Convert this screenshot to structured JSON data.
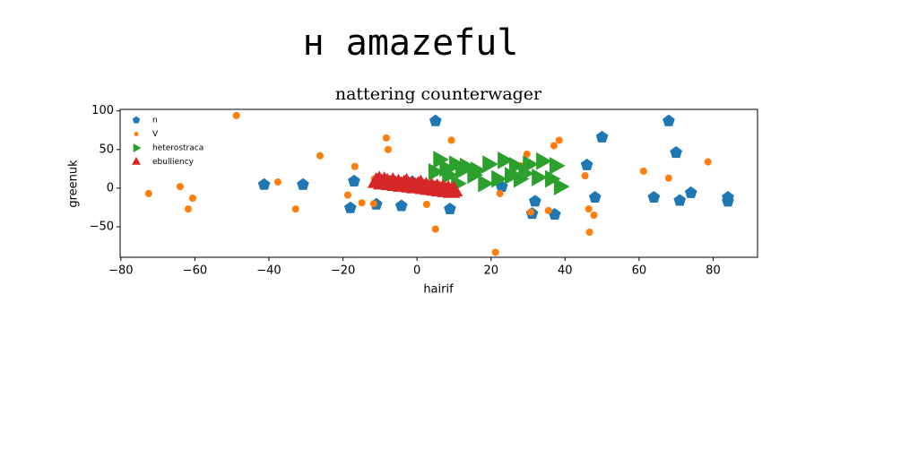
{
  "page_title": "н amazeful",
  "chart_data": {
    "type": "scatter",
    "title": "nattering counterwager",
    "xlabel": "hairif",
    "ylabel": "greenuk",
    "xlim": [
      -80.2,
      92
    ],
    "ylim": [
      -89.5,
      102
    ],
    "xticks": [
      {
        "value": -80,
        "label": "−80"
      },
      {
        "value": -60,
        "label": "−60"
      },
      {
        "value": -40,
        "label": "−40"
      },
      {
        "value": -20,
        "label": "−20"
      },
      0,
      20,
      40,
      60,
      80
    ],
    "yticks": [
      {
        "value": -50,
        "label": "−50"
      },
      0,
      50,
      100
    ],
    "legend": "upper left",
    "grid": false,
    "series": [
      {
        "name": "n",
        "color": "#1f77b4",
        "marker": "pentagon",
        "x": [
          5,
          -41.3,
          -30.8,
          -17,
          -18,
          -11,
          -4.2,
          -1.3,
          8.9,
          22.9,
          31.1,
          31.9,
          37.2,
          45.9,
          48.1,
          50,
          64,
          68,
          70,
          71,
          74,
          84,
          84
        ],
        "y": [
          87,
          4.6,
          4.6,
          9,
          -25.6,
          -21,
          -23,
          8,
          -27,
          2,
          -33,
          -17,
          -34,
          30,
          -12,
          66,
          -12,
          87,
          46,
          -16,
          -6,
          -12,
          -17
        ]
      },
      {
        "name": "V",
        "color": "#ff7f0e",
        "marker": "circle",
        "x": [
          -48.8,
          -72.5,
          -64,
          -61.8,
          -60.6,
          -37.6,
          -32.8,
          -26.2,
          -16.8,
          -18.7,
          -14.9,
          -11.7,
          -11.5,
          -8.3,
          -7.8,
          2.6,
          5,
          9.3,
          21.2,
          22.4,
          28,
          29.7,
          30.7,
          35.5,
          37,
          38.4,
          45.4,
          46.4,
          46.6,
          47.8,
          61.2,
          68,
          78.6
        ],
        "y": [
          94,
          -7,
          2,
          -27,
          -13,
          8,
          -27,
          42,
          28,
          -9,
          -19,
          -20,
          12,
          65,
          50,
          -21,
          -53,
          62,
          -83,
          -7,
          29,
          44,
          -31,
          -29,
          55,
          62,
          16,
          -27,
          -57,
          -35,
          22,
          13,
          34
        ]
      },
      {
        "name": "heterostraca",
        "color": "#2ca02c",
        "marker": "triangle-right",
        "x": [
          6.0,
          10.3,
          13.2,
          16.1,
          19.3,
          23.4,
          26.5,
          30.2,
          33.8,
          37.4,
          4.7,
          8.4,
          12.0,
          15.2,
          18.1,
          21.7,
          25.3,
          29.0,
          32.6,
          36.2,
          38.6,
          10.8,
          27.7,
          7.7
        ],
        "y": [
          37,
          31,
          28,
          23,
          31,
          36,
          29,
          31,
          35,
          29,
          21,
          17,
          23,
          17,
          6,
          12,
          16,
          19,
          14,
          12,
          2,
          6,
          12,
          26
        ]
      },
      {
        "name": "ebulliency",
        "color": "#d62728",
        "marker": "triangle-up",
        "x": [
          -11,
          -10.2,
          -9.5,
          -8.8,
          -8,
          -7.3,
          -6.5,
          -5.8,
          -5,
          -4.2,
          -3.5,
          -2.8,
          -2,
          -1.2,
          -0.5,
          0.3,
          1,
          1.8,
          2.5,
          3.2,
          4,
          4.8,
          5.5,
          6.2,
          7,
          7.8,
          8.5,
          9.3,
          10
        ],
        "y": [
          8,
          10,
          6,
          9,
          7,
          5,
          8,
          4,
          6,
          3,
          5,
          7,
          2,
          4,
          1,
          3,
          5,
          0,
          2,
          -1,
          1,
          -2,
          0,
          -3,
          -1,
          -4,
          -2,
          -5,
          -3
        ]
      }
    ]
  }
}
